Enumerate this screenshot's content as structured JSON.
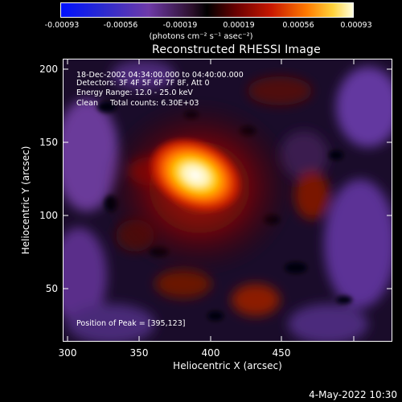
{
  "colorbar": {
    "ticks": [
      "-0.00093",
      "-0.00056",
      "-0.00019",
      "0.00019",
      "0.00056",
      "0.00093"
    ],
    "units": "(photons cm⁻² s⁻¹ asec⁻²)"
  },
  "title": "Reconstructed RHESSI Image",
  "info": {
    "line1": "18-Dec-2002 04:34:00.000 to 04:40:00.000",
    "line2": "Detectors: 3F 4F 5F 6F 7F 8F, Att 0",
    "line3": "Energy Range: 12.0 - 25.0 keV",
    "line4": "Clean     Total counts: 6.30E+03",
    "peak": "Position of Peak = [395,123]"
  },
  "axes": {
    "xlabel": "Heliocentric X (arcsec)",
    "ylabel": "Heliocentric Y (arcsec)",
    "xticks": [
      "300",
      "350",
      "400",
      "450"
    ],
    "yticks": [
      "200",
      "150",
      "100",
      "50"
    ]
  },
  "timestamp": "4-May-2022 10:30"
}
